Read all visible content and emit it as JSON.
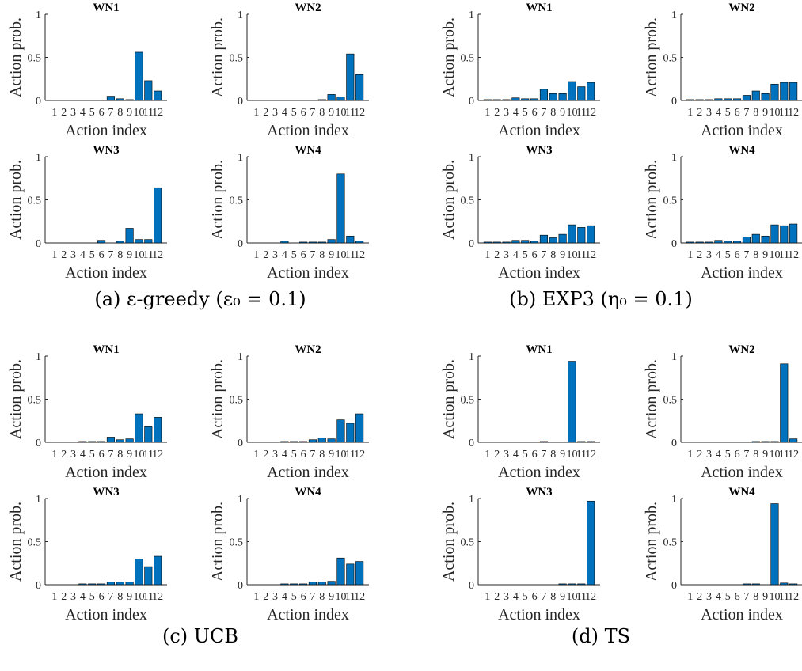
{
  "groups": [
    {
      "caption": "(a) ε-greedy (ε₀ = 0.1)"
    },
    {
      "caption": "(b) EXP3 (η₀ = 0.1)"
    },
    {
      "caption": "(c) UCB"
    },
    {
      "caption": "(d) TS"
    }
  ],
  "chart_data": [
    {
      "type": "bar",
      "group": "a",
      "title": "WN1",
      "xlabel": "Action index",
      "ylabel": "Action prob.",
      "ylim": [
        0,
        1
      ],
      "yticks": [
        "0",
        "0.5",
        "1"
      ],
      "categories": [
        "1",
        "2",
        "3",
        "4",
        "5",
        "6",
        "7",
        "8",
        "9",
        "10",
        "11",
        "12"
      ],
      "values": [
        0,
        0,
        0,
        0,
        0,
        0,
        0.05,
        0.02,
        0.01,
        0.56,
        0.23,
        0.11
      ],
      "color": "#0072BD"
    },
    {
      "type": "bar",
      "group": "a",
      "title": "WN2",
      "xlabel": "Action index",
      "ylabel": "Action prob.",
      "ylim": [
        0,
        1
      ],
      "yticks": [
        "0",
        "0.5",
        "1"
      ],
      "categories": [
        "1",
        "2",
        "3",
        "4",
        "5",
        "6",
        "7",
        "8",
        "9",
        "10",
        "11",
        "12"
      ],
      "values": [
        0,
        0,
        0,
        0,
        0,
        0,
        0,
        0.01,
        0.07,
        0.04,
        0.54,
        0.3
      ],
      "color": "#0072BD"
    },
    {
      "type": "bar",
      "group": "a",
      "title": "WN3",
      "xlabel": "Action index",
      "ylabel": "Action prob.",
      "ylim": [
        0,
        1
      ],
      "yticks": [
        "0",
        "0.5",
        "1"
      ],
      "categories": [
        "1",
        "2",
        "3",
        "4",
        "5",
        "6",
        "7",
        "8",
        "9",
        "10",
        "11",
        "12"
      ],
      "values": [
        0,
        0,
        0,
        0,
        0,
        0.03,
        0,
        0.02,
        0.17,
        0.04,
        0.04,
        0.64
      ],
      "color": "#0072BD"
    },
    {
      "type": "bar",
      "group": "a",
      "title": "WN4",
      "xlabel": "Action index",
      "ylabel": "Action prob.",
      "ylim": [
        0,
        1
      ],
      "yticks": [
        "0",
        "0.5",
        "1"
      ],
      "categories": [
        "1",
        "2",
        "3",
        "4",
        "5",
        "6",
        "7",
        "8",
        "9",
        "10",
        "11",
        "12"
      ],
      "values": [
        0,
        0,
        0,
        0.02,
        0,
        0.01,
        0.01,
        0.01,
        0.04,
        0.8,
        0.08,
        0.02
      ],
      "color": "#0072BD"
    },
    {
      "type": "bar",
      "group": "b",
      "title": "WN1",
      "xlabel": "Action index",
      "ylabel": "Action prob.",
      "ylim": [
        0,
        1
      ],
      "yticks": [
        "0",
        "0.5",
        "1"
      ],
      "categories": [
        "1",
        "2",
        "3",
        "4",
        "5",
        "6",
        "7",
        "8",
        "9",
        "10",
        "11",
        "12"
      ],
      "values": [
        0.01,
        0.01,
        0.01,
        0.03,
        0.02,
        0.02,
        0.13,
        0.08,
        0.08,
        0.22,
        0.16,
        0.21
      ],
      "color": "#0072BD"
    },
    {
      "type": "bar",
      "group": "b",
      "title": "WN2",
      "xlabel": "Action index",
      "ylabel": "Action prob.",
      "ylim": [
        0,
        1
      ],
      "yticks": [
        "0",
        "0.5",
        "1"
      ],
      "categories": [
        "1",
        "2",
        "3",
        "4",
        "5",
        "6",
        "7",
        "8",
        "9",
        "10",
        "11",
        "12"
      ],
      "values": [
        0.01,
        0.01,
        0.01,
        0.02,
        0.02,
        0.02,
        0.06,
        0.11,
        0.08,
        0.19,
        0.21,
        0.21
      ],
      "color": "#0072BD"
    },
    {
      "type": "bar",
      "group": "b",
      "title": "WN3",
      "xlabel": "Action index",
      "ylabel": "Action prob.",
      "ylim": [
        0,
        1
      ],
      "yticks": [
        "0",
        "0.5",
        "1"
      ],
      "categories": [
        "1",
        "2",
        "3",
        "4",
        "5",
        "6",
        "7",
        "8",
        "9",
        "10",
        "11",
        "12"
      ],
      "values": [
        0.01,
        0.01,
        0.01,
        0.03,
        0.03,
        0.02,
        0.09,
        0.06,
        0.1,
        0.21,
        0.18,
        0.2
      ],
      "color": "#0072BD"
    },
    {
      "type": "bar",
      "group": "b",
      "title": "WN4",
      "xlabel": "Action index",
      "ylabel": "Action prob.",
      "ylim": [
        0,
        1
      ],
      "yticks": [
        "0",
        "0.5",
        "1"
      ],
      "categories": [
        "1",
        "2",
        "3",
        "4",
        "5",
        "6",
        "7",
        "8",
        "9",
        "10",
        "11",
        "12"
      ],
      "values": [
        0.01,
        0.01,
        0.01,
        0.03,
        0.02,
        0.02,
        0.07,
        0.1,
        0.08,
        0.21,
        0.2,
        0.22
      ],
      "color": "#0072BD"
    },
    {
      "type": "bar",
      "group": "c",
      "title": "WN1",
      "xlabel": "Action index",
      "ylabel": "Action prob.",
      "ylim": [
        0,
        1
      ],
      "yticks": [
        "0",
        "0.5",
        "1"
      ],
      "categories": [
        "1",
        "2",
        "3",
        "4",
        "5",
        "6",
        "7",
        "8",
        "9",
        "10",
        "11",
        "12"
      ],
      "values": [
        0,
        0,
        0,
        0.01,
        0.01,
        0.01,
        0.06,
        0.03,
        0.04,
        0.33,
        0.18,
        0.29
      ],
      "color": "#0072BD"
    },
    {
      "type": "bar",
      "group": "c",
      "title": "WN2",
      "xlabel": "Action index",
      "ylabel": "Action prob.",
      "ylim": [
        0,
        1
      ],
      "yticks": [
        "0",
        "0.5",
        "1"
      ],
      "categories": [
        "1",
        "2",
        "3",
        "4",
        "5",
        "6",
        "7",
        "8",
        "9",
        "10",
        "11",
        "12"
      ],
      "values": [
        0,
        0,
        0,
        0.01,
        0.01,
        0.01,
        0.03,
        0.05,
        0.04,
        0.26,
        0.22,
        0.33
      ],
      "color": "#0072BD"
    },
    {
      "type": "bar",
      "group": "c",
      "title": "WN3",
      "xlabel": "Action index",
      "ylabel": "Action prob.",
      "ylim": [
        0,
        1
      ],
      "yticks": [
        "0",
        "0.5",
        "1"
      ],
      "categories": [
        "1",
        "2",
        "3",
        "4",
        "5",
        "6",
        "7",
        "8",
        "9",
        "10",
        "11",
        "12"
      ],
      "values": [
        0,
        0,
        0,
        0.01,
        0.01,
        0.01,
        0.03,
        0.03,
        0.03,
        0.3,
        0.21,
        0.33
      ],
      "color": "#0072BD"
    },
    {
      "type": "bar",
      "group": "c",
      "title": "WN4",
      "xlabel": "Action index",
      "ylabel": "Action prob.",
      "ylim": [
        0,
        1
      ],
      "yticks": [
        "0",
        "0.5",
        "1"
      ],
      "categories": [
        "1",
        "2",
        "3",
        "4",
        "5",
        "6",
        "7",
        "8",
        "9",
        "10",
        "11",
        "12"
      ],
      "values": [
        0,
        0,
        0,
        0.01,
        0.01,
        0.01,
        0.03,
        0.03,
        0.04,
        0.31,
        0.24,
        0.27
      ],
      "color": "#0072BD"
    },
    {
      "type": "bar",
      "group": "d",
      "title": "WN1",
      "xlabel": "Action index",
      "ylabel": "Action prob.",
      "ylim": [
        0,
        1
      ],
      "yticks": [
        "0",
        "0.5",
        "1"
      ],
      "categories": [
        "1",
        "2",
        "3",
        "4",
        "5",
        "6",
        "7",
        "8",
        "9",
        "10",
        "11",
        "12"
      ],
      "values": [
        0,
        0,
        0,
        0,
        0,
        0,
        0.01,
        0,
        0,
        0.94,
        0.01,
        0.01
      ],
      "color": "#0072BD"
    },
    {
      "type": "bar",
      "group": "d",
      "title": "WN2",
      "xlabel": "Action index",
      "ylabel": "Action prob.",
      "ylim": [
        0,
        1
      ],
      "yticks": [
        "0",
        "0.5",
        "1"
      ],
      "categories": [
        "1",
        "2",
        "3",
        "4",
        "5",
        "6",
        "7",
        "8",
        "9",
        "10",
        "11",
        "12"
      ],
      "values": [
        0,
        0,
        0,
        0,
        0,
        0,
        0,
        0.01,
        0.01,
        0.01,
        0.91,
        0.04
      ],
      "color": "#0072BD"
    },
    {
      "type": "bar",
      "group": "d",
      "title": "WN3",
      "xlabel": "Action index",
      "ylabel": "Action prob.",
      "ylim": [
        0,
        1
      ],
      "yticks": [
        "0",
        "0.5",
        "1"
      ],
      "categories": [
        "1",
        "2",
        "3",
        "4",
        "5",
        "6",
        "7",
        "8",
        "9",
        "10",
        "11",
        "12"
      ],
      "values": [
        0,
        0,
        0,
        0,
        0,
        0,
        0,
        0,
        0.01,
        0.01,
        0.01,
        0.97
      ],
      "color": "#0072BD"
    },
    {
      "type": "bar",
      "group": "d",
      "title": "WN4",
      "xlabel": "Action index",
      "ylabel": "Action prob.",
      "ylim": [
        0,
        1
      ],
      "yticks": [
        "0",
        "0.5",
        "1"
      ],
      "categories": [
        "1",
        "2",
        "3",
        "4",
        "5",
        "6",
        "7",
        "8",
        "9",
        "10",
        "11",
        "12"
      ],
      "values": [
        0,
        0,
        0,
        0,
        0,
        0,
        0.01,
        0.01,
        0,
        0.94,
        0.02,
        0.01
      ],
      "color": "#0072BD"
    }
  ]
}
